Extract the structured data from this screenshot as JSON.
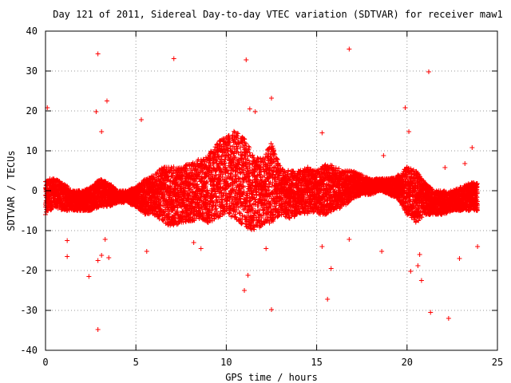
{
  "chart_data": {
    "type": "scatter",
    "title": "Day 121 of 2011, Sidereal Day-to-day VTEC variation (SDTVAR) for receiver maw1",
    "xlabel": "GPS time / hours",
    "ylabel": "SDTVAR / TECUs",
    "xlim": [
      0,
      25
    ],
    "ylim": [
      -40,
      40
    ],
    "xticks": [
      0,
      5,
      10,
      15,
      20,
      25
    ],
    "yticks": [
      -40,
      -30,
      -20,
      -10,
      0,
      10,
      20,
      30,
      40
    ],
    "x_tick_labels": [
      "0",
      "5",
      "10",
      "15",
      "20",
      "25"
    ],
    "y_tick_labels": [
      "-40",
      "-30",
      "-20",
      "-10",
      "0",
      "10",
      "20",
      "30",
      "40"
    ],
    "grid": true,
    "marker": "plus",
    "color": "#ff0000",
    "outliers": [
      {
        "x": 2.9,
        "y": 34.3
      },
      {
        "x": 7.1,
        "y": 33.1
      },
      {
        "x": 11.1,
        "y": 32.8
      },
      {
        "x": 16.8,
        "y": 35.5
      },
      {
        "x": 21.2,
        "y": 29.8
      },
      {
        "x": 0.1,
        "y": 20.8
      },
      {
        "x": 2.8,
        "y": 19.8
      },
      {
        "x": 3.4,
        "y": 22.5
      },
      {
        "x": 11.3,
        "y": 20.5
      },
      {
        "x": 11.6,
        "y": 19.8
      },
      {
        "x": 12.5,
        "y": 23.2
      },
      {
        "x": 19.9,
        "y": 20.8
      },
      {
        "x": 5.3,
        "y": 17.8
      },
      {
        "x": 3.1,
        "y": 14.8
      },
      {
        "x": 15.3,
        "y": 14.5
      },
      {
        "x": 20.1,
        "y": 14.8
      },
      {
        "x": 23.2,
        "y": 6.8
      },
      {
        "x": 23.6,
        "y": 10.8
      },
      {
        "x": 22.1,
        "y": 5.8
      },
      {
        "x": 18.7,
        "y": 8.8
      },
      {
        "x": 1.2,
        "y": -12.5
      },
      {
        "x": 1.2,
        "y": -16.5
      },
      {
        "x": 2.4,
        "y": -21.5
      },
      {
        "x": 2.9,
        "y": -34.8
      },
      {
        "x": 2.9,
        "y": -17.5
      },
      {
        "x": 3.1,
        "y": -16.2
      },
      {
        "x": 3.3,
        "y": -12.2
      },
      {
        "x": 3.5,
        "y": -16.8
      },
      {
        "x": 5.6,
        "y": -15.2
      },
      {
        "x": 8.2,
        "y": -13.0
      },
      {
        "x": 8.6,
        "y": -14.5
      },
      {
        "x": 11.0,
        "y": -25.0
      },
      {
        "x": 11.2,
        "y": -21.2
      },
      {
        "x": 12.5,
        "y": -29.8
      },
      {
        "x": 12.2,
        "y": -14.5
      },
      {
        "x": 15.3,
        "y": -14.0
      },
      {
        "x": 15.6,
        "y": -27.2
      },
      {
        "x": 15.8,
        "y": -19.5
      },
      {
        "x": 16.8,
        "y": -12.2
      },
      {
        "x": 18.6,
        "y": -15.2
      },
      {
        "x": 20.2,
        "y": -20.2
      },
      {
        "x": 20.6,
        "y": -18.8
      },
      {
        "x": 20.8,
        "y": -22.5
      },
      {
        "x": 21.3,
        "y": -30.5
      },
      {
        "x": 22.3,
        "y": -32.0
      },
      {
        "x": 22.9,
        "y": -17.0
      },
      {
        "x": 23.9,
        "y": -14.0
      },
      {
        "x": 20.7,
        "y": -16.0
      }
    ],
    "dense_band": [
      {
        "x": 0.0,
        "y_low": -6,
        "y_high": 3
      },
      {
        "x": 0.5,
        "y_low": -4,
        "y_high": 3
      },
      {
        "x": 1.0,
        "y_low": -5,
        "y_high": 2
      },
      {
        "x": 1.5,
        "y_low": -5,
        "y_high": 0
      },
      {
        "x": 2.0,
        "y_low": -5,
        "y_high": 0
      },
      {
        "x": 2.5,
        "y_low": -5,
        "y_high": 1
      },
      {
        "x": 3.0,
        "y_low": -4,
        "y_high": 3
      },
      {
        "x": 3.5,
        "y_low": -4,
        "y_high": 2
      },
      {
        "x": 4.0,
        "y_low": -3,
        "y_high": 0
      },
      {
        "x": 4.5,
        "y_low": -3,
        "y_high": 0
      },
      {
        "x": 5.0,
        "y_low": -4,
        "y_high": 1
      },
      {
        "x": 5.5,
        "y_low": -6,
        "y_high": 3
      },
      {
        "x": 6.0,
        "y_low": -6,
        "y_high": 4
      },
      {
        "x": 6.5,
        "y_low": -8,
        "y_high": 6
      },
      {
        "x": 7.0,
        "y_low": -9,
        "y_high": 6
      },
      {
        "x": 7.5,
        "y_low": -8,
        "y_high": 6
      },
      {
        "x": 8.0,
        "y_low": -8,
        "y_high": 7
      },
      {
        "x": 8.5,
        "y_low": -7,
        "y_high": 8
      },
      {
        "x": 9.0,
        "y_low": -8,
        "y_high": 9
      },
      {
        "x": 9.5,
        "y_low": -7,
        "y_high": 12
      },
      {
        "x": 10.0,
        "y_low": -6,
        "y_high": 14
      },
      {
        "x": 10.5,
        "y_low": -7,
        "y_high": 15
      },
      {
        "x": 11.0,
        "y_low": -9,
        "y_high": 13
      },
      {
        "x": 11.5,
        "y_low": -10,
        "y_high": 9
      },
      {
        "x": 12.0,
        "y_low": -9,
        "y_high": 8
      },
      {
        "x": 12.5,
        "y_low": -8,
        "y_high": 12
      },
      {
        "x": 13.0,
        "y_low": -6,
        "y_high": 6
      },
      {
        "x": 13.5,
        "y_low": -7,
        "y_high": 5
      },
      {
        "x": 14.0,
        "y_low": -6,
        "y_high": 5
      },
      {
        "x": 14.5,
        "y_low": -6,
        "y_high": 6
      },
      {
        "x": 15.0,
        "y_low": -6,
        "y_high": 5
      },
      {
        "x": 15.5,
        "y_low": -6,
        "y_high": 7
      },
      {
        "x": 16.0,
        "y_low": -5,
        "y_high": 6
      },
      {
        "x": 16.5,
        "y_low": -4,
        "y_high": 5
      },
      {
        "x": 17.0,
        "y_low": -2,
        "y_high": 5
      },
      {
        "x": 17.5,
        "y_low": -1,
        "y_high": 4
      },
      {
        "x": 18.0,
        "y_low": -1,
        "y_high": 3
      },
      {
        "x": 18.5,
        "y_low": 0,
        "y_high": 3
      },
      {
        "x": 19.0,
        "y_low": -1,
        "y_high": 3
      },
      {
        "x": 19.5,
        "y_low": -2,
        "y_high": 4
      },
      {
        "x": 20.0,
        "y_low": -6,
        "y_high": 6
      },
      {
        "x": 20.5,
        "y_low": -8,
        "y_high": 5
      },
      {
        "x": 21.0,
        "y_low": -6,
        "y_high": 2
      },
      {
        "x": 21.5,
        "y_low": -6,
        "y_high": 0
      },
      {
        "x": 22.0,
        "y_low": -6,
        "y_high": 0
      },
      {
        "x": 22.5,
        "y_low": -5,
        "y_high": 0
      },
      {
        "x": 23.0,
        "y_low": -5,
        "y_high": 1
      },
      {
        "x": 23.5,
        "y_low": -5,
        "y_high": 2
      },
      {
        "x": 23.9,
        "y_low": -5,
        "y_high": 2
      }
    ]
  }
}
